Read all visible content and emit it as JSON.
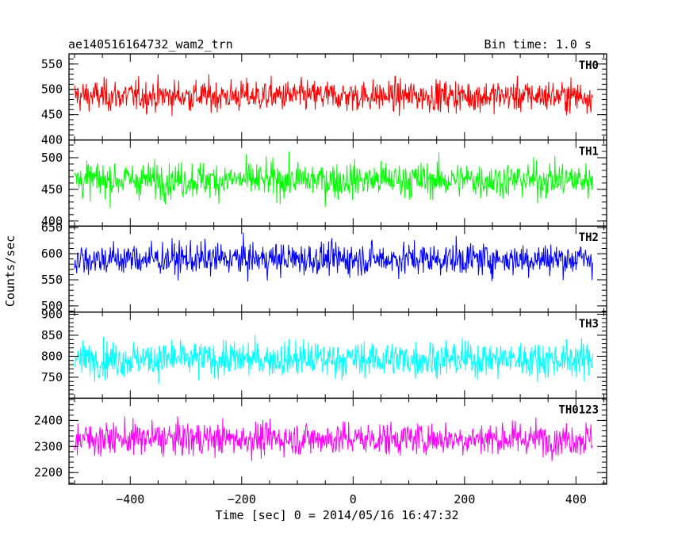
{
  "chart_data": {
    "type": "line",
    "title": "ae140516164732_wam2_trn",
    "bin_label": "Bin time: 1.0 s",
    "xlabel": "Time [sec] 0 = 2014/05/16 16:47:32",
    "ylabel": "Counts/sec",
    "xlim": [
      -510,
      455
    ],
    "xticks": [
      -400,
      -200,
      0,
      200,
      400
    ],
    "x_data_range": [
      -500,
      430
    ],
    "bin_seconds": 1.0,
    "panels": [
      {
        "name": "TH0",
        "color": "#ff0000",
        "ylim": [
          400,
          570
        ],
        "yticks": [
          400,
          450,
          500,
          550
        ],
        "mean": 487,
        "spread": 22
      },
      {
        "name": "TH1",
        "color": "#00ff00",
        "ylim": [
          392,
          528
        ],
        "yticks": [
          400,
          450,
          500
        ],
        "mean": 465,
        "spread": 20
      },
      {
        "name": "TH2",
        "color": "#0000ff",
        "ylim": [
          488,
          653
        ],
        "yticks": [
          500,
          550,
          600,
          650
        ],
        "mean": 590,
        "spread": 22
      },
      {
        "name": "TH3",
        "color": "#00ffff",
        "ylim": [
          700,
          905
        ],
        "yticks": [
          750,
          800,
          850,
          900
        ],
        "mean": 793,
        "spread": 30
      },
      {
        "name": "TH0123",
        "color": "#ff00ff",
        "ylim": [
          2155,
          2485
        ],
        "yticks": [
          2200,
          2300,
          2400
        ],
        "mean": 2330,
        "spread": 45
      }
    ]
  }
}
